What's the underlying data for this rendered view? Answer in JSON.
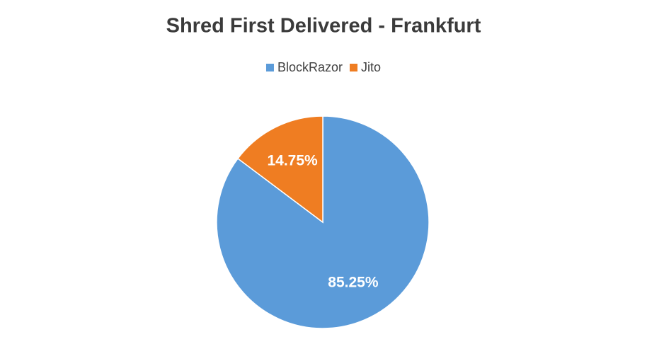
{
  "chart_data": {
    "type": "pie",
    "title": "Shred First Delivered - Frankfurt",
    "categories": [
      "BlockRazor",
      "Jito"
    ],
    "values": [
      85.25,
      14.75
    ],
    "value_labels": [
      "85.25%",
      "14.75%"
    ],
    "colors": [
      "#5b9bd9",
      "#ef7d22"
    ],
    "legend": "top"
  }
}
